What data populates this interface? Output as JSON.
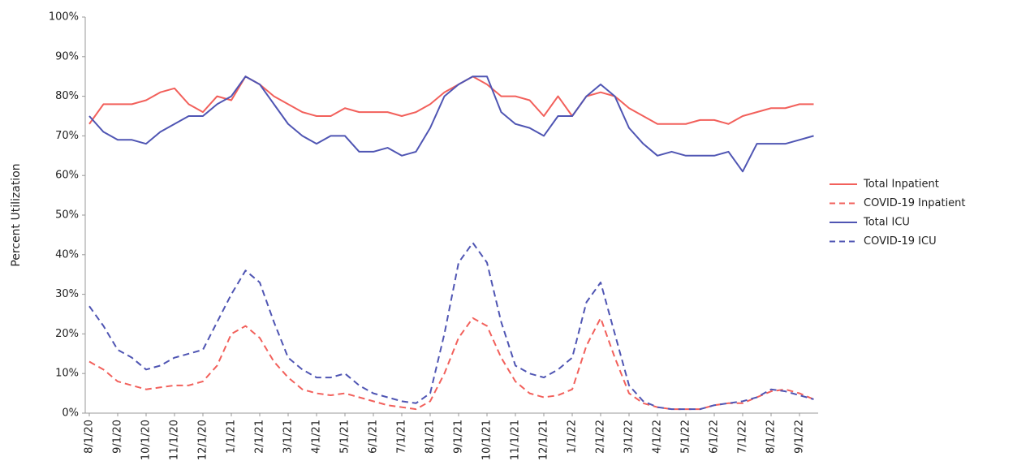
{
  "chart_data": {
    "type": "line",
    "y_label": "Percent Utilization",
    "categories": [
      "8/1/20",
      null,
      "9/1/20",
      null,
      "10/1/20",
      null,
      "11/1/20",
      null,
      "12/1/20",
      null,
      "1/1/21",
      null,
      "2/1/21",
      null,
      "3/1/21",
      null,
      "4/1/21",
      null,
      "5/1/21",
      null,
      "6/1/21",
      null,
      "7/1/21",
      null,
      "8/1/21",
      null,
      "9/1/21",
      null,
      "10/1/21",
      null,
      "11/1/21",
      null,
      "12/1/21",
      null,
      "1/1/22",
      null,
      "2/1/22",
      null,
      "3/1/22",
      null,
      "4/1/22",
      null,
      "5/1/22",
      null,
      "6/1/22",
      null,
      "7/1/22",
      null,
      "8/1/22",
      null,
      "9/1/22",
      null
    ],
    "series": [
      {
        "name": "Total Inpatient",
        "color": "#f2605b",
        "dash": false,
        "values": [
          73,
          78,
          78,
          78,
          79,
          81,
          82,
          78,
          76,
          80,
          79,
          85,
          83,
          80,
          78,
          76,
          75,
          75,
          77,
          76,
          76,
          76,
          75,
          76,
          78,
          81,
          83,
          85,
          83,
          80,
          80,
          79,
          75,
          80,
          75,
          80,
          81,
          80,
          77,
          75,
          73,
          73,
          73,
          74,
          74,
          73,
          75,
          76,
          77,
          77,
          78,
          78
        ]
      },
      {
        "name": "COVID-19 Inpatient",
        "color": "#f2605b",
        "dash": true,
        "values": [
          13,
          11,
          8,
          7,
          6,
          6.5,
          7,
          7,
          8,
          12,
          20,
          22,
          19,
          13,
          9,
          6,
          5,
          4.5,
          5,
          4,
          3,
          2,
          1.5,
          1,
          3,
          10,
          19,
          24,
          22,
          14,
          8,
          5,
          4,
          4.5,
          6,
          17,
          24,
          14,
          5,
          2.5,
          1.5,
          1,
          1,
          1,
          2,
          2.5,
          2.5,
          4,
          5.5,
          6,
          5,
          3.5
        ]
      },
      {
        "name": "Total ICU",
        "color": "#4f55b3",
        "dash": false,
        "values": [
          75,
          71,
          69,
          69,
          68,
          71,
          73,
          75,
          75,
          78,
          80,
          85,
          83,
          78,
          73,
          70,
          68,
          70,
          70,
          66,
          66,
          67,
          65,
          66,
          72,
          80,
          83,
          85,
          85,
          76,
          73,
          72,
          70,
          75,
          75,
          80,
          83,
          80,
          72,
          68,
          65,
          66,
          65,
          65,
          65,
          66,
          61,
          68,
          68,
          68,
          69,
          70
        ]
      },
      {
        "name": "COVID-19 ICU",
        "color": "#4f55b3",
        "dash": true,
        "values": [
          27,
          22,
          16,
          14,
          11,
          12,
          14,
          15,
          16,
          23,
          30,
          36,
          33,
          23,
          14,
          11,
          9,
          9,
          10,
          7,
          5,
          4,
          3,
          2.5,
          5,
          20,
          38,
          43,
          38,
          23,
          12,
          10,
          9,
          11,
          14,
          28,
          33,
          20,
          7,
          3,
          1.5,
          1,
          1,
          1,
          2,
          2.5,
          3,
          4,
          6,
          5.5,
          4.5,
          3.5
        ]
      }
    ],
    "ylim": [
      0,
      100
    ],
    "yticks": [
      {
        "value": 0,
        "label": "0%"
      },
      {
        "value": 10,
        "label": "10%"
      },
      {
        "value": 20,
        "label": "20%"
      },
      {
        "value": 30,
        "label": "30%"
      },
      {
        "value": 40,
        "label": "40%"
      },
      {
        "value": 50,
        "label": "50%"
      },
      {
        "value": 60,
        "label": "60%"
      },
      {
        "value": 70,
        "label": "70%"
      },
      {
        "value": 80,
        "label": "80%"
      },
      {
        "value": 90,
        "label": "90%"
      },
      {
        "value": 100,
        "label": "100%"
      }
    ],
    "grid": false,
    "legend": "right"
  }
}
